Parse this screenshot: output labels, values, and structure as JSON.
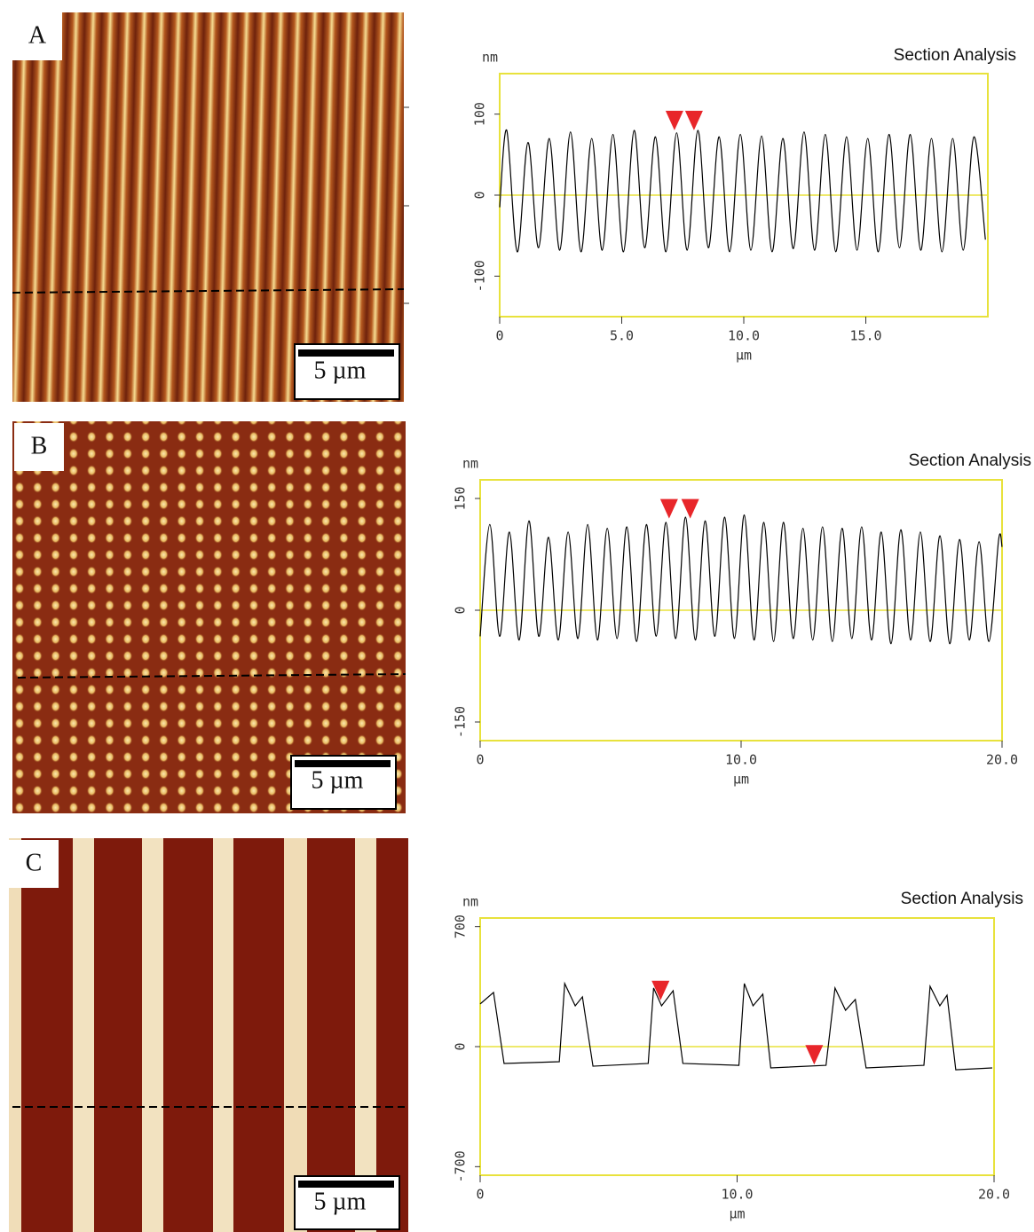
{
  "panels": [
    {
      "label": "A",
      "scale_bar": "5 µm"
    },
    {
      "label": "B",
      "scale_bar": "5 µm"
    },
    {
      "label": "C",
      "scale_bar": "5 µm"
    }
  ],
  "chart_data": [
    {
      "type": "line",
      "title": "Section Analysis",
      "ylabel": "nm",
      "xlabel": "µm",
      "color": "#000000",
      "smooth": true,
      "x": [
        0,
        0.29,
        0.72,
        1.16,
        1.59,
        2.03,
        2.46,
        2.9,
        3.33,
        3.77,
        4.2,
        4.64,
        5.07,
        5.51,
        5.94,
        6.38,
        6.81,
        7.25,
        7.68,
        8.12,
        8.55,
        8.99,
        9.42,
        9.86,
        10.29,
        10.73,
        11.16,
        11.6,
        12.03,
        12.47,
        12.9,
        13.34,
        13.77,
        14.21,
        14.64,
        15.08,
        15.51,
        15.95,
        16.38,
        16.82,
        17.25,
        17.69,
        18.12,
        18.56,
        18.99,
        19.43,
        19.9
      ],
      "values": [
        -15,
        80,
        -70,
        65,
        -65,
        70,
        -68,
        78,
        -70,
        70,
        -68,
        75,
        -70,
        80,
        -65,
        72,
        -70,
        77,
        -68,
        80,
        -65,
        72,
        -70,
        75,
        -68,
        73,
        -70,
        70,
        -66,
        78,
        -68,
        75,
        -70,
        72,
        -68,
        70,
        -70,
        75,
        -65,
        75,
        -68,
        70,
        -70,
        70,
        -68,
        72,
        -55
      ],
      "xlim": [
        0,
        20
      ],
      "ylim": [
        -150,
        150
      ],
      "xticks": [
        0,
        {
          "value": 5,
          "label": "5.0"
        },
        {
          "value": 10,
          "label": "10.0"
        },
        {
          "value": 15,
          "label": "15.0"
        }
      ],
      "yticks": [
        -100,
        0,
        100
      ],
      "reference_line": 0,
      "reference_color": "#e8e23c",
      "frame_color": "#e8e23c",
      "markers": {
        "color": "#e8262a",
        "x": [
          7.16,
          7.96
        ],
        "y": [
          80,
          80
        ]
      }
    },
    {
      "type": "line",
      "title": "Section Analysis",
      "ylabel": "nm",
      "xlabel": "µm",
      "color": "#000000",
      "smooth": true,
      "x": [
        0,
        0.37,
        0.745,
        1.12,
        1.495,
        1.87,
        2.245,
        2.62,
        2.995,
        3.37,
        3.745,
        4.12,
        4.495,
        4.87,
        5.245,
        5.62,
        5.995,
        6.37,
        6.745,
        7.12,
        7.495,
        7.87,
        8.245,
        8.62,
        8.995,
        9.37,
        9.745,
        10.12,
        10.495,
        10.87,
        11.245,
        11.62,
        11.995,
        12.37,
        12.745,
        13.12,
        13.495,
        13.87,
        14.245,
        14.62,
        14.995,
        15.37,
        15.745,
        16.12,
        16.495,
        16.87,
        17.245,
        17.62,
        17.995,
        18.37,
        18.745,
        19.12,
        19.495,
        19.87,
        20.0
      ],
      "values": [
        -35,
        115,
        -35,
        105,
        -40,
        120,
        -35,
        98,
        -40,
        105,
        -38,
        115,
        -40,
        110,
        -38,
        112,
        -42,
        115,
        -35,
        118,
        -38,
        125,
        -40,
        120,
        -35,
        125,
        -38,
        128,
        -40,
        118,
        -42,
        118,
        -38,
        110,
        -40,
        112,
        -42,
        110,
        -38,
        112,
        -40,
        105,
        -45,
        108,
        -40,
        105,
        -42,
        100,
        -45,
        95,
        -40,
        92,
        -42,
        95,
        85
      ],
      "xlim": [
        0,
        20
      ],
      "ylim": [
        -175,
        175
      ],
      "xticks": [
        0,
        {
          "value": 10,
          "label": "10.0"
        },
        {
          "value": 20,
          "label": "20.0"
        }
      ],
      "yticks": [
        -150,
        0,
        150
      ],
      "reference_line": 0,
      "reference_color": "#e8e23c",
      "frame_color": "#e8e23c",
      "markers": {
        "color": "#e8262a",
        "x": [
          7.24,
          8.05
        ],
        "y": [
          123,
          123
        ]
      }
    },
    {
      "type": "line",
      "title": "Section Analysis",
      "ylabel": "nm",
      "xlabel": "µm",
      "color": "#000000",
      "smooth": false,
      "x": [
        0,
        0.52,
        0.93,
        3.08,
        3.29,
        3.7,
        3.98,
        4.39,
        6.54,
        6.75,
        7.06,
        7.51,
        7.89,
        10.07,
        10.28,
        10.62,
        11.0,
        11.31,
        13.46,
        13.81,
        14.22,
        14.6,
        15.02,
        17.27,
        17.51,
        17.89,
        18.17,
        18.51,
        19.93
      ],
      "values": [
        249,
        316,
        -98,
        -88,
        368,
        238,
        290,
        -114,
        -98,
        342,
        238,
        326,
        -98,
        -109,
        368,
        238,
        306,
        -124,
        -109,
        342,
        212,
        275,
        -124,
        -109,
        352,
        238,
        300,
        -135,
        -124
      ],
      "xlim": [
        0,
        20
      ],
      "ylim": [
        -750,
        750
      ],
      "xticks": [
        0,
        {
          "value": 10,
          "label": "10.0"
        },
        {
          "value": 20,
          "label": "20.0"
        }
      ],
      "yticks": [
        -700,
        0,
        700
      ],
      "reference_line": 0,
      "reference_color": "#e8e23c",
      "frame_color": "#e8e23c",
      "markers": {
        "color": "#e8262a",
        "x": [
          7.02,
          13.0
        ],
        "y": [
          270,
          -105
        ]
      }
    }
  ]
}
